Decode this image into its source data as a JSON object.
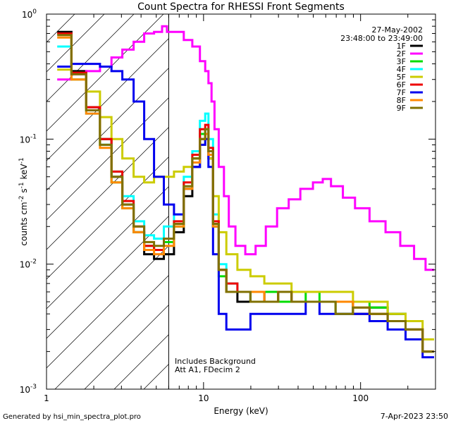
{
  "chart_data": {
    "type": "line",
    "title": "Count Spectra for RHESSI Front Segments",
    "xlabel": "Energy (keV)",
    "ylabel_main": "counts cm",
    "ylabel_exp1": "-2",
    "ylabel_mid": " s",
    "ylabel_exp2": "-1",
    "ylabel_end": " keV",
    "ylabel_exp3": "-1",
    "x_scale": "log",
    "y_scale": "log",
    "xlim": [
      1,
      300
    ],
    "ylim": [
      0.001,
      1
    ],
    "x_ticks": [
      {
        "value": 1,
        "label": "1"
      },
      {
        "value": 10,
        "label": "10"
      },
      {
        "value": 100,
        "label": "100"
      }
    ],
    "y_ticks": [
      {
        "value": 1,
        "base": "10",
        "exp": "0"
      },
      {
        "value": 0.1,
        "base": "10",
        "exp": "-1"
      },
      {
        "value": 0.01,
        "base": "10",
        "exp": "-2"
      },
      {
        "value": 0.001,
        "base": "10",
        "exp": "-3"
      }
    ],
    "date": "27-May-2002",
    "time_range": "23:48:00 to 23:49:00",
    "threshold_energy": 6,
    "annotation_line1": "Includes Background",
    "annotation_line2": "Att A1, FDecim 2",
    "series": [
      {
        "name": "1F",
        "color": "#000000",
        "energies": [
          1.3,
          1.6,
          2.0,
          2.4,
          2.8,
          3.3,
          3.9,
          4.5,
          5.2,
          6.0,
          7.0,
          8.0,
          9.0,
          10.0,
          10.5,
          11.0,
          12,
          13,
          15,
          18,
          22,
          27,
          33,
          40,
          50,
          60,
          80,
          100,
          130,
          170,
          220,
          280
        ],
        "values": [
          0.72,
          0.35,
          0.18,
          0.1,
          0.05,
          0.03,
          0.018,
          0.012,
          0.011,
          0.012,
          0.018,
          0.035,
          0.06,
          0.1,
          0.11,
          0.07,
          0.02,
          0.009,
          0.006,
          0.005,
          0.006,
          0.005,
          0.006,
          0.005,
          0.005,
          0.005,
          0.005,
          0.004,
          0.0045,
          0.004,
          0.003,
          0.002
        ]
      },
      {
        "name": "2F",
        "color": "#ff00ff",
        "energies": [
          1.3,
          1.6,
          2.0,
          2.4,
          2.8,
          3.3,
          3.9,
          4.5,
          5.2,
          5.7,
          6.0,
          7.0,
          8.0,
          9.0,
          10.0,
          10.5,
          11.0,
          11.5,
          12,
          13,
          14,
          15,
          17,
          20,
          23,
          27,
          32,
          38,
          45,
          55,
          60,
          70,
          85,
          100,
          130,
          160,
          200,
          240,
          280
        ],
        "values": [
          0.3,
          0.33,
          0.35,
          0.38,
          0.45,
          0.52,
          0.6,
          0.7,
          0.72,
          0.8,
          0.72,
          0.72,
          0.62,
          0.55,
          0.42,
          0.35,
          0.28,
          0.2,
          0.12,
          0.06,
          0.035,
          0.02,
          0.014,
          0.012,
          0.014,
          0.02,
          0.028,
          0.033,
          0.04,
          0.045,
          0.048,
          0.042,
          0.034,
          0.028,
          0.022,
          0.018,
          0.014,
          0.011,
          0.009
        ]
      },
      {
        "name": "3F",
        "color": "#00dd00",
        "energies": [
          1.3,
          1.6,
          2.0,
          2.4,
          2.8,
          3.3,
          3.9,
          4.5,
          5.2,
          6.0,
          7.0,
          8.0,
          9.0,
          10.0,
          10.5,
          11.0,
          12,
          13,
          15,
          18,
          22,
          27,
          33,
          40,
          50,
          60,
          80,
          100,
          130,
          170,
          220,
          280
        ],
        "values": [
          0.7,
          0.34,
          0.17,
          0.09,
          0.045,
          0.028,
          0.018,
          0.014,
          0.013,
          0.015,
          0.02,
          0.04,
          0.07,
          0.11,
          0.12,
          0.08,
          0.02,
          0.008,
          0.006,
          0.006,
          0.005,
          0.006,
          0.005,
          0.005,
          0.006,
          0.005,
          0.004,
          0.005,
          0.0045,
          0.004,
          0.003,
          0.002
        ]
      },
      {
        "name": "4F",
        "color": "#00ffff",
        "energies": [
          1.3,
          1.6,
          2.0,
          2.4,
          2.8,
          3.3,
          3.9,
          4.5,
          5.2,
          6.0,
          7.0,
          8.0,
          9.0,
          10.0,
          10.5,
          11.0,
          12,
          13,
          15,
          18,
          22,
          27,
          33,
          40,
          50,
          60,
          80,
          100,
          130,
          170,
          220,
          280
        ],
        "values": [
          0.55,
          0.3,
          0.16,
          0.09,
          0.055,
          0.035,
          0.022,
          0.017,
          0.016,
          0.02,
          0.025,
          0.05,
          0.08,
          0.14,
          0.16,
          0.1,
          0.025,
          0.01,
          0.007,
          0.006,
          0.006,
          0.005,
          0.006,
          0.005,
          0.005,
          0.005,
          0.005,
          0.004,
          0.004,
          0.0035,
          0.003,
          0.002
        ]
      },
      {
        "name": "5F",
        "color": "#cccc00",
        "energies": [
          1.3,
          1.6,
          2.0,
          2.4,
          2.8,
          3.3,
          3.9,
          4.5,
          5.2,
          6.0,
          7.0,
          8.0,
          9.0,
          10.0,
          10.5,
          11.0,
          12,
          13,
          15,
          18,
          22,
          27,
          33,
          40,
          50,
          60,
          80,
          100,
          130,
          170,
          220,
          280
        ],
        "values": [
          0.36,
          0.3,
          0.24,
          0.15,
          0.1,
          0.07,
          0.05,
          0.045,
          0.05,
          0.05,
          0.055,
          0.06,
          0.07,
          0.09,
          0.1,
          0.07,
          0.035,
          0.018,
          0.012,
          0.009,
          0.008,
          0.007,
          0.007,
          0.006,
          0.006,
          0.006,
          0.006,
          0.005,
          0.005,
          0.004,
          0.0035,
          0.0025
        ]
      },
      {
        "name": "6F",
        "color": "#ee0000",
        "energies": [
          1.3,
          1.6,
          2.0,
          2.4,
          2.8,
          3.3,
          3.9,
          4.5,
          5.2,
          6.0,
          7.0,
          8.0,
          9.0,
          10.0,
          10.5,
          11.0,
          12,
          13,
          15,
          18,
          22,
          27,
          33,
          40,
          50,
          60,
          80,
          100,
          130,
          170,
          220,
          280
        ],
        "values": [
          0.7,
          0.34,
          0.18,
          0.1,
          0.055,
          0.032,
          0.02,
          0.014,
          0.013,
          0.016,
          0.022,
          0.045,
          0.075,
          0.12,
          0.13,
          0.085,
          0.022,
          0.009,
          0.007,
          0.006,
          0.006,
          0.005,
          0.006,
          0.005,
          0.005,
          0.005,
          0.005,
          0.004,
          0.004,
          0.0035,
          0.003,
          0.002
        ]
      },
      {
        "name": "7F",
        "color": "#0000ee",
        "energies": [
          1.3,
          1.6,
          2.0,
          2.4,
          2.8,
          3.3,
          3.9,
          4.5,
          5.2,
          6.0,
          7.0,
          8.0,
          9.0,
          10.0,
          10.5,
          11.0,
          12,
          13,
          15,
          18,
          22,
          27,
          33,
          40,
          50,
          60,
          80,
          100,
          130,
          170,
          220,
          280
        ],
        "values": [
          0.38,
          0.4,
          0.4,
          0.38,
          0.35,
          0.3,
          0.2,
          0.1,
          0.05,
          0.03,
          0.025,
          0.04,
          0.06,
          0.09,
          0.1,
          0.06,
          0.012,
          0.004,
          0.003,
          0.003,
          0.004,
          0.004,
          0.004,
          0.004,
          0.005,
          0.004,
          0.004,
          0.004,
          0.0035,
          0.003,
          0.0025,
          0.0018
        ]
      },
      {
        "name": "8F",
        "color": "#ff8800",
        "energies": [
          1.3,
          1.6,
          2.0,
          2.4,
          2.8,
          3.3,
          3.9,
          4.5,
          5.2,
          6.0,
          7.0,
          8.0,
          9.0,
          10.0,
          10.5,
          11.0,
          12,
          13,
          15,
          18,
          22,
          27,
          33,
          40,
          50,
          60,
          80,
          100,
          130,
          170,
          220,
          280
        ],
        "values": [
          0.65,
          0.3,
          0.16,
          0.085,
          0.045,
          0.028,
          0.018,
          0.013,
          0.012,
          0.014,
          0.02,
          0.04,
          0.065,
          0.1,
          0.11,
          0.075,
          0.02,
          0.009,
          0.006,
          0.006,
          0.006,
          0.005,
          0.006,
          0.005,
          0.005,
          0.005,
          0.005,
          0.0045,
          0.004,
          0.0035,
          0.003,
          0.002
        ]
      },
      {
        "name": "9F",
        "color": "#807000",
        "energies": [
          1.3,
          1.6,
          2.0,
          2.4,
          2.8,
          3.3,
          3.9,
          4.5,
          5.2,
          6.0,
          7.0,
          8.0,
          9.0,
          10.0,
          10.5,
          11.0,
          12,
          13,
          15,
          18,
          22,
          27,
          33,
          40,
          50,
          60,
          80,
          100,
          130,
          170,
          220,
          280
        ],
        "values": [
          0.68,
          0.33,
          0.17,
          0.09,
          0.05,
          0.03,
          0.02,
          0.015,
          0.014,
          0.016,
          0.021,
          0.042,
          0.07,
          0.1,
          0.12,
          0.08,
          0.021,
          0.009,
          0.006,
          0.006,
          0.005,
          0.005,
          0.006,
          0.005,
          0.005,
          0.005,
          0.004,
          0.0045,
          0.004,
          0.0035,
          0.003,
          0.002
        ]
      }
    ]
  },
  "footer": {
    "generator": "Generated by hsi_min_spectra_plot.pro",
    "timestamp": "7-Apr-2023 23:50"
  }
}
